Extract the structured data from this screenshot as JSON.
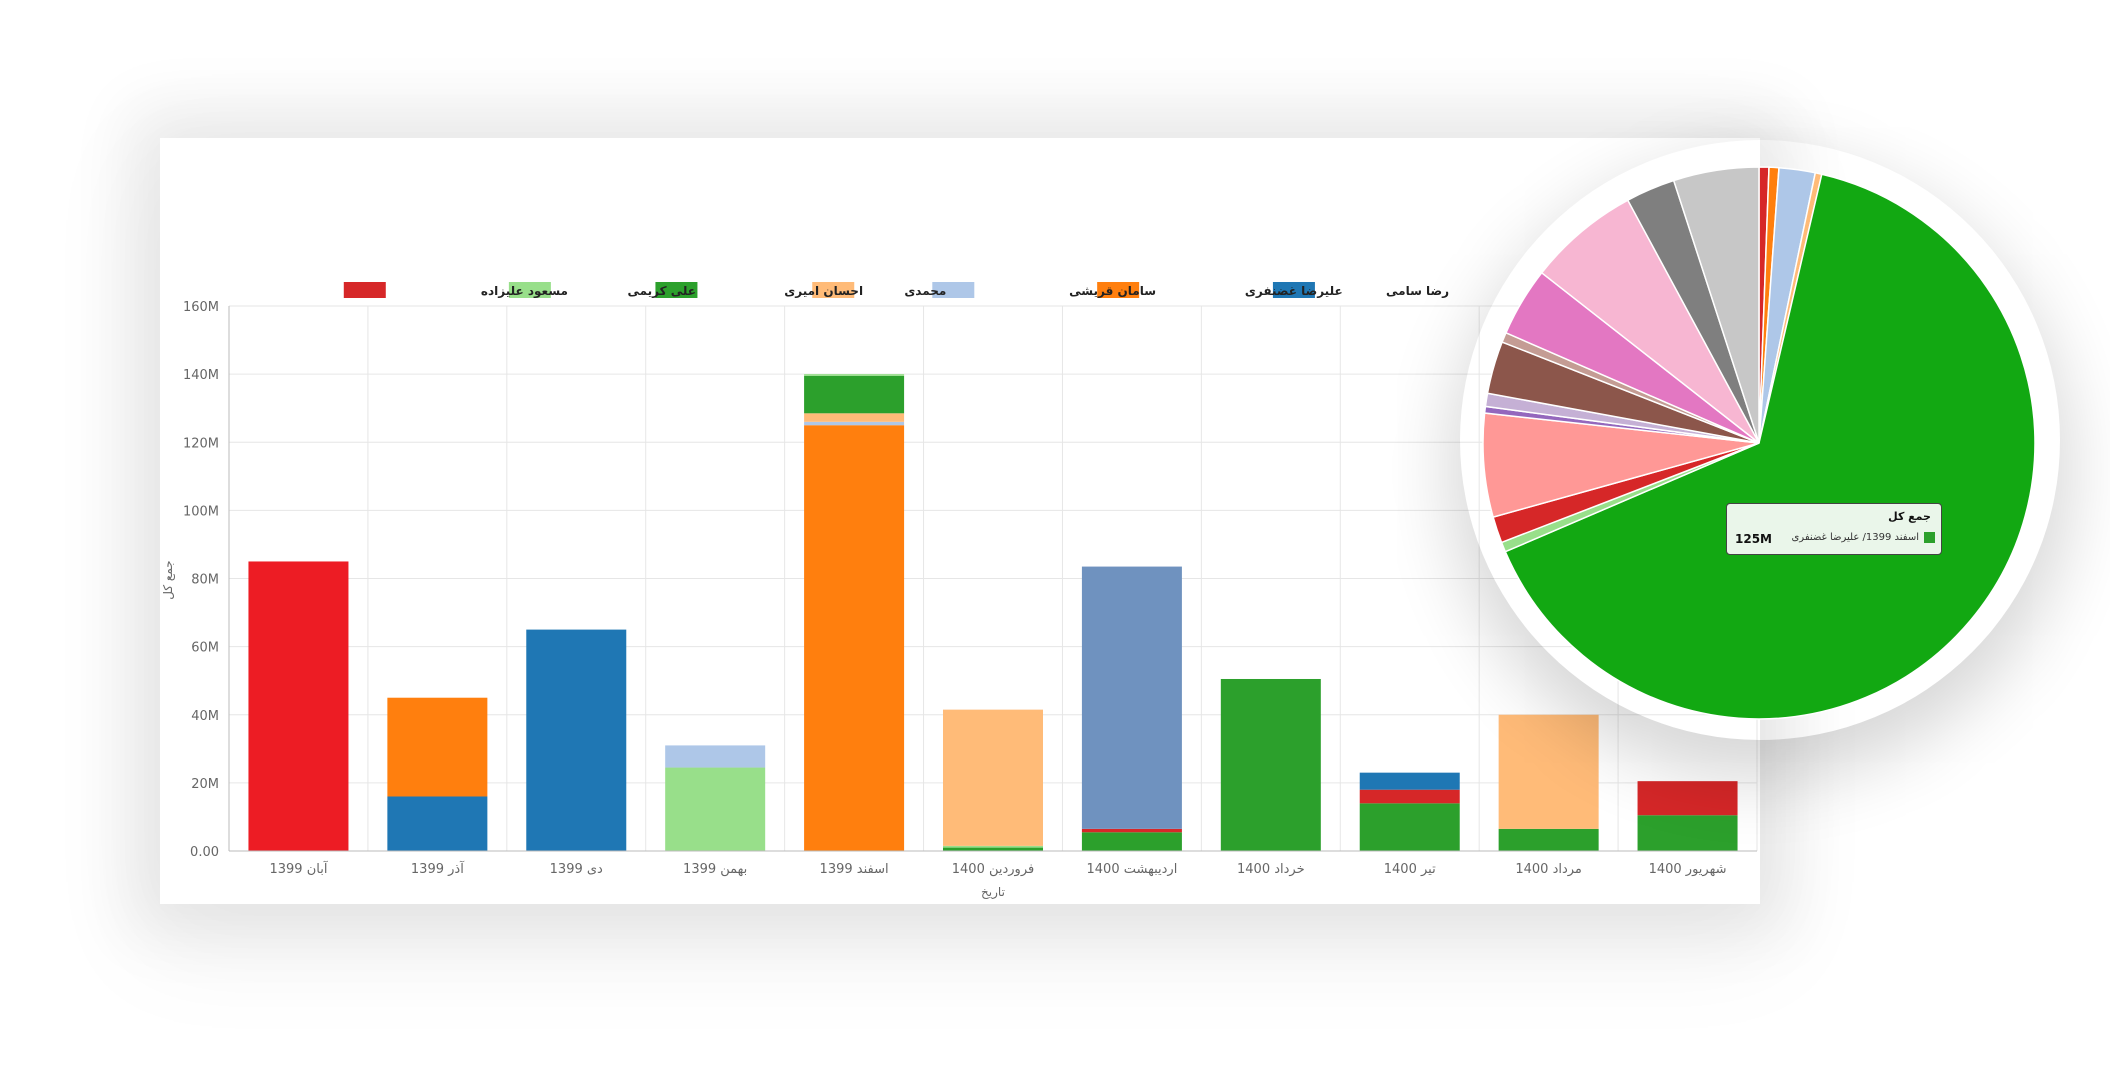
{
  "chart_data": [
    {
      "type": "bar",
      "stacked": true,
      "categories": [
        "آبان 1399",
        "آذر 1399",
        "دی 1399",
        "بهمن 1399",
        "اسفند 1399",
        "فروردین 1400",
        "اردیبهشت 1400",
        "خرداد 1400",
        "تیر 1400",
        "مرداد 1400",
        "شهریور 1400"
      ],
      "xlabel": "تاریخ",
      "ylabel": "جمع کل",
      "ylim": [
        0,
        160000000
      ],
      "yticks": [
        "0.00",
        "20M",
        "40M",
        "60M",
        "80M",
        "100M",
        "120M",
        "140M",
        "160M"
      ],
      "grid": true,
      "legend_position": "top",
      "legend": [
        {
          "name": "رضا سامی",
          "color": "#1f77b4"
        },
        {
          "name": "علیرضا غضنفری",
          "color": "#ff7f0e"
        },
        {
          "name": "سامان قریشی",
          "color": "#aec7e8"
        },
        {
          "name": "محمدی",
          "color": "#ffbb78"
        },
        {
          "name": "احسان امیری",
          "color": "#2ca02c"
        },
        {
          "name": "علی کریمی",
          "color": "#98df8a"
        },
        {
          "name": "مسعود علیزاده",
          "color": "#d62728"
        }
      ],
      "stacks": [
        [
          {
            "value": 85000000,
            "color": "#ed1c24"
          }
        ],
        [
          {
            "value": 16000000,
            "color": "#1f77b4"
          },
          {
            "value": 29000000,
            "color": "#ff7f0e"
          }
        ],
        [
          {
            "value": 65000000,
            "color": "#1f77b4"
          }
        ],
        [
          {
            "value": 24500000,
            "color": "#98df8a"
          },
          {
            "value": 6500000,
            "color": "#aec7e8"
          }
        ],
        [
          {
            "value": 125000000,
            "color": "#ff7f0e"
          },
          {
            "value": 1000000,
            "color": "#aec7e8"
          },
          {
            "value": 2500000,
            "color": "#ffbb78"
          },
          {
            "value": 11000000,
            "color": "#2ca02c"
          },
          {
            "value": 500000,
            "color": "#98df8a"
          }
        ],
        [
          {
            "value": 1000000,
            "color": "#2ca02c"
          },
          {
            "value": 500000,
            "color": "#98df8a"
          },
          {
            "value": 40000000,
            "color": "#ffbb78"
          }
        ],
        [
          {
            "value": 5500000,
            "color": "#2ca02c"
          },
          {
            "value": 1000000,
            "color": "#d62728"
          },
          {
            "value": 77000000,
            "color": "#6f92bf"
          }
        ],
        [
          {
            "value": 50500000,
            "color": "#2ca02c"
          }
        ],
        [
          {
            "value": 14000000,
            "color": "#2ca02c"
          },
          {
            "value": 4000000,
            "color": "#d62728"
          },
          {
            "value": 5000000,
            "color": "#1f77b4"
          }
        ],
        [
          {
            "value": 6500000,
            "color": "#2ca02c"
          },
          {
            "value": 33500000,
            "color": "#ffbb78"
          }
        ],
        [
          {
            "value": 10500000,
            "color": "#2ca02c"
          },
          {
            "value": 10000000,
            "color": "#d62728"
          }
        ]
      ]
    },
    {
      "type": "pie",
      "slices": [
        {
          "value": 0.6,
          "color": "#d62728"
        },
        {
          "value": 0.6,
          "color": "#ff7f0e"
        },
        {
          "value": 2.2,
          "color": "#aec7e8"
        },
        {
          "value": 0.4,
          "color": "#ffbb78"
        },
        {
          "value": 67.5,
          "color": "#12a812"
        },
        {
          "value": 0.6,
          "color": "#98df8a"
        },
        {
          "value": 1.6,
          "color": "#d62728"
        },
        {
          "value": 6.3,
          "color": "#ff9896"
        },
        {
          "value": 0.4,
          "color": "#9467bd"
        },
        {
          "value": 0.8,
          "color": "#c5b0d5"
        },
        {
          "value": 3.2,
          "color": "#8c564b"
        },
        {
          "value": 0.6,
          "color": "#c49c94"
        },
        {
          "value": 4.2,
          "color": "#e377c2"
        },
        {
          "value": 6.8,
          "color": "#f7b6d2"
        },
        {
          "value": 3.0,
          "color": "#7f7f7f"
        },
        {
          "value": 5.2,
          "color": "#c7c7c7"
        }
      ]
    }
  ],
  "tooltip": {
    "title": "جمع کل",
    "label": "اسفند 1399/  علیرضا غضنفری",
    "value": "125M",
    "swatch_color": "#2ca02c"
  }
}
